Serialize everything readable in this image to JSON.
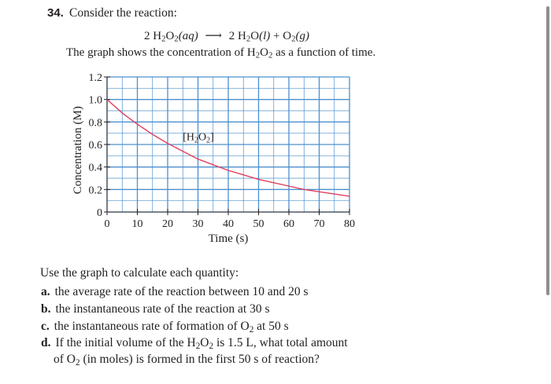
{
  "problem": {
    "number": "34.",
    "prompt": "Consider the reaction:",
    "equation": {
      "coef1": "2 ",
      "h2o2_a": "H",
      "h2o2_sub1": "2",
      "h2o2_b": "O",
      "h2o2_sub2": "2",
      "phase1": "(aq)",
      "arrow": "⟶",
      "coef2": "2 ",
      "h2o_a": "H",
      "h2o_sub": "2",
      "h2o_b": "O",
      "phase2": "(l)",
      "plus": " + ",
      "o2_a": "O",
      "o2_sub": "2",
      "phase3": "(g)"
    },
    "description_pre": "The graph shows the concentration of H",
    "description_sub1": "2",
    "description_mid": "O",
    "description_sub2": "2",
    "description_post": " as a function of time."
  },
  "chart_data": {
    "type": "line",
    "xlabel": "Time (s)",
    "ylabel": "Concentration (M)",
    "xlim": [
      0,
      80
    ],
    "ylim": [
      0,
      1.2
    ],
    "x_ticks": [
      "0",
      "10",
      "20",
      "30",
      "40",
      "50",
      "60",
      "70",
      "80"
    ],
    "y_ticks": [
      "0",
      "0.2",
      "0.4",
      "0.6",
      "0.8",
      "1.0",
      "1.2"
    ],
    "grid": true,
    "curve_label": {
      "pre": "[H",
      "sub1": "2",
      "mid": "O",
      "sub2": "2",
      "post": "]"
    },
    "series": [
      {
        "x": [
          0,
          5,
          10,
          15,
          20,
          25,
          30,
          35,
          40,
          45,
          50,
          55,
          60,
          65,
          70,
          75,
          80
        ],
        "values": [
          1.0,
          0.88,
          0.78,
          0.69,
          0.61,
          0.54,
          0.47,
          0.42,
          0.37,
          0.33,
          0.29,
          0.26,
          0.23,
          0.2,
          0.18,
          0.16,
          0.14
        ]
      }
    ],
    "colors": {
      "grid": "#4d90ce",
      "curve": "#e0405e",
      "axis": "#231f20"
    }
  },
  "instructions": "Use the graph to calculate each quantity:",
  "items": [
    {
      "letter": "a.",
      "text": "the average rate of the reaction between 10 and 20 s"
    },
    {
      "letter": "b.",
      "text": "the instantaneous rate of the reaction at 30 s"
    },
    {
      "letter": "c.",
      "text_pre": "the instantaneous rate of formation of O",
      "text_sub": "2",
      "text_post": " at 50 s"
    },
    {
      "letter": "d.",
      "text_pre": "If the initial volume of the H",
      "text_sub1": "2",
      "text_mid": "O",
      "text_sub2": "2",
      "text_post": " is 1.5 L, what total amount"
    }
  ],
  "item_d_continuation": {
    "pre": "of O",
    "sub": "2",
    "post": " (in moles) is formed in the first 50 s of reaction?"
  }
}
